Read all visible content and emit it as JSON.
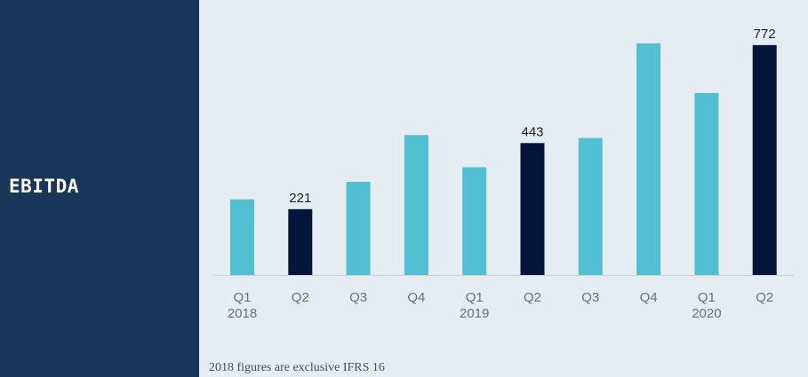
{
  "side_panel": {
    "title": "EBITDA"
  },
  "footnote": "2018 figures are exclusive IFRS 16",
  "colors": {
    "bar": "#52bfd3",
    "highlight": "#03163a",
    "panel": "#1a365a",
    "background": "#e6edf2"
  },
  "chart_data": {
    "type": "bar",
    "title": "EBITDA",
    "xlabel": "",
    "ylabel": "",
    "ylim": [
      0,
      840
    ],
    "grid": false,
    "legend": "none",
    "categories": [
      "Q1 2018",
      "Q2 2018",
      "Q3 2018",
      "Q4 2018",
      "Q1 2019",
      "Q2 2019",
      "Q3 2019",
      "Q4 2019",
      "Q1 2020",
      "Q2 2020"
    ],
    "tick_labels": [
      [
        "Q1",
        "2018"
      ],
      [
        "Q2",
        ""
      ],
      [
        "Q3",
        ""
      ],
      [
        "Q4",
        ""
      ],
      [
        "Q1",
        "2019"
      ],
      [
        "Q2",
        ""
      ],
      [
        "Q3",
        ""
      ],
      [
        "Q4",
        ""
      ],
      [
        "Q1",
        "2020"
      ],
      [
        "Q2",
        ""
      ]
    ],
    "values": [
      254,
      221,
      313,
      470,
      362,
      443,
      460,
      778,
      611,
      772
    ],
    "highlighted": [
      false,
      true,
      false,
      false,
      false,
      true,
      false,
      false,
      false,
      true
    ],
    "data_labels": [
      "",
      "221",
      "",
      "",
      "",
      "443",
      "",
      "",
      "",
      "772"
    ]
  }
}
